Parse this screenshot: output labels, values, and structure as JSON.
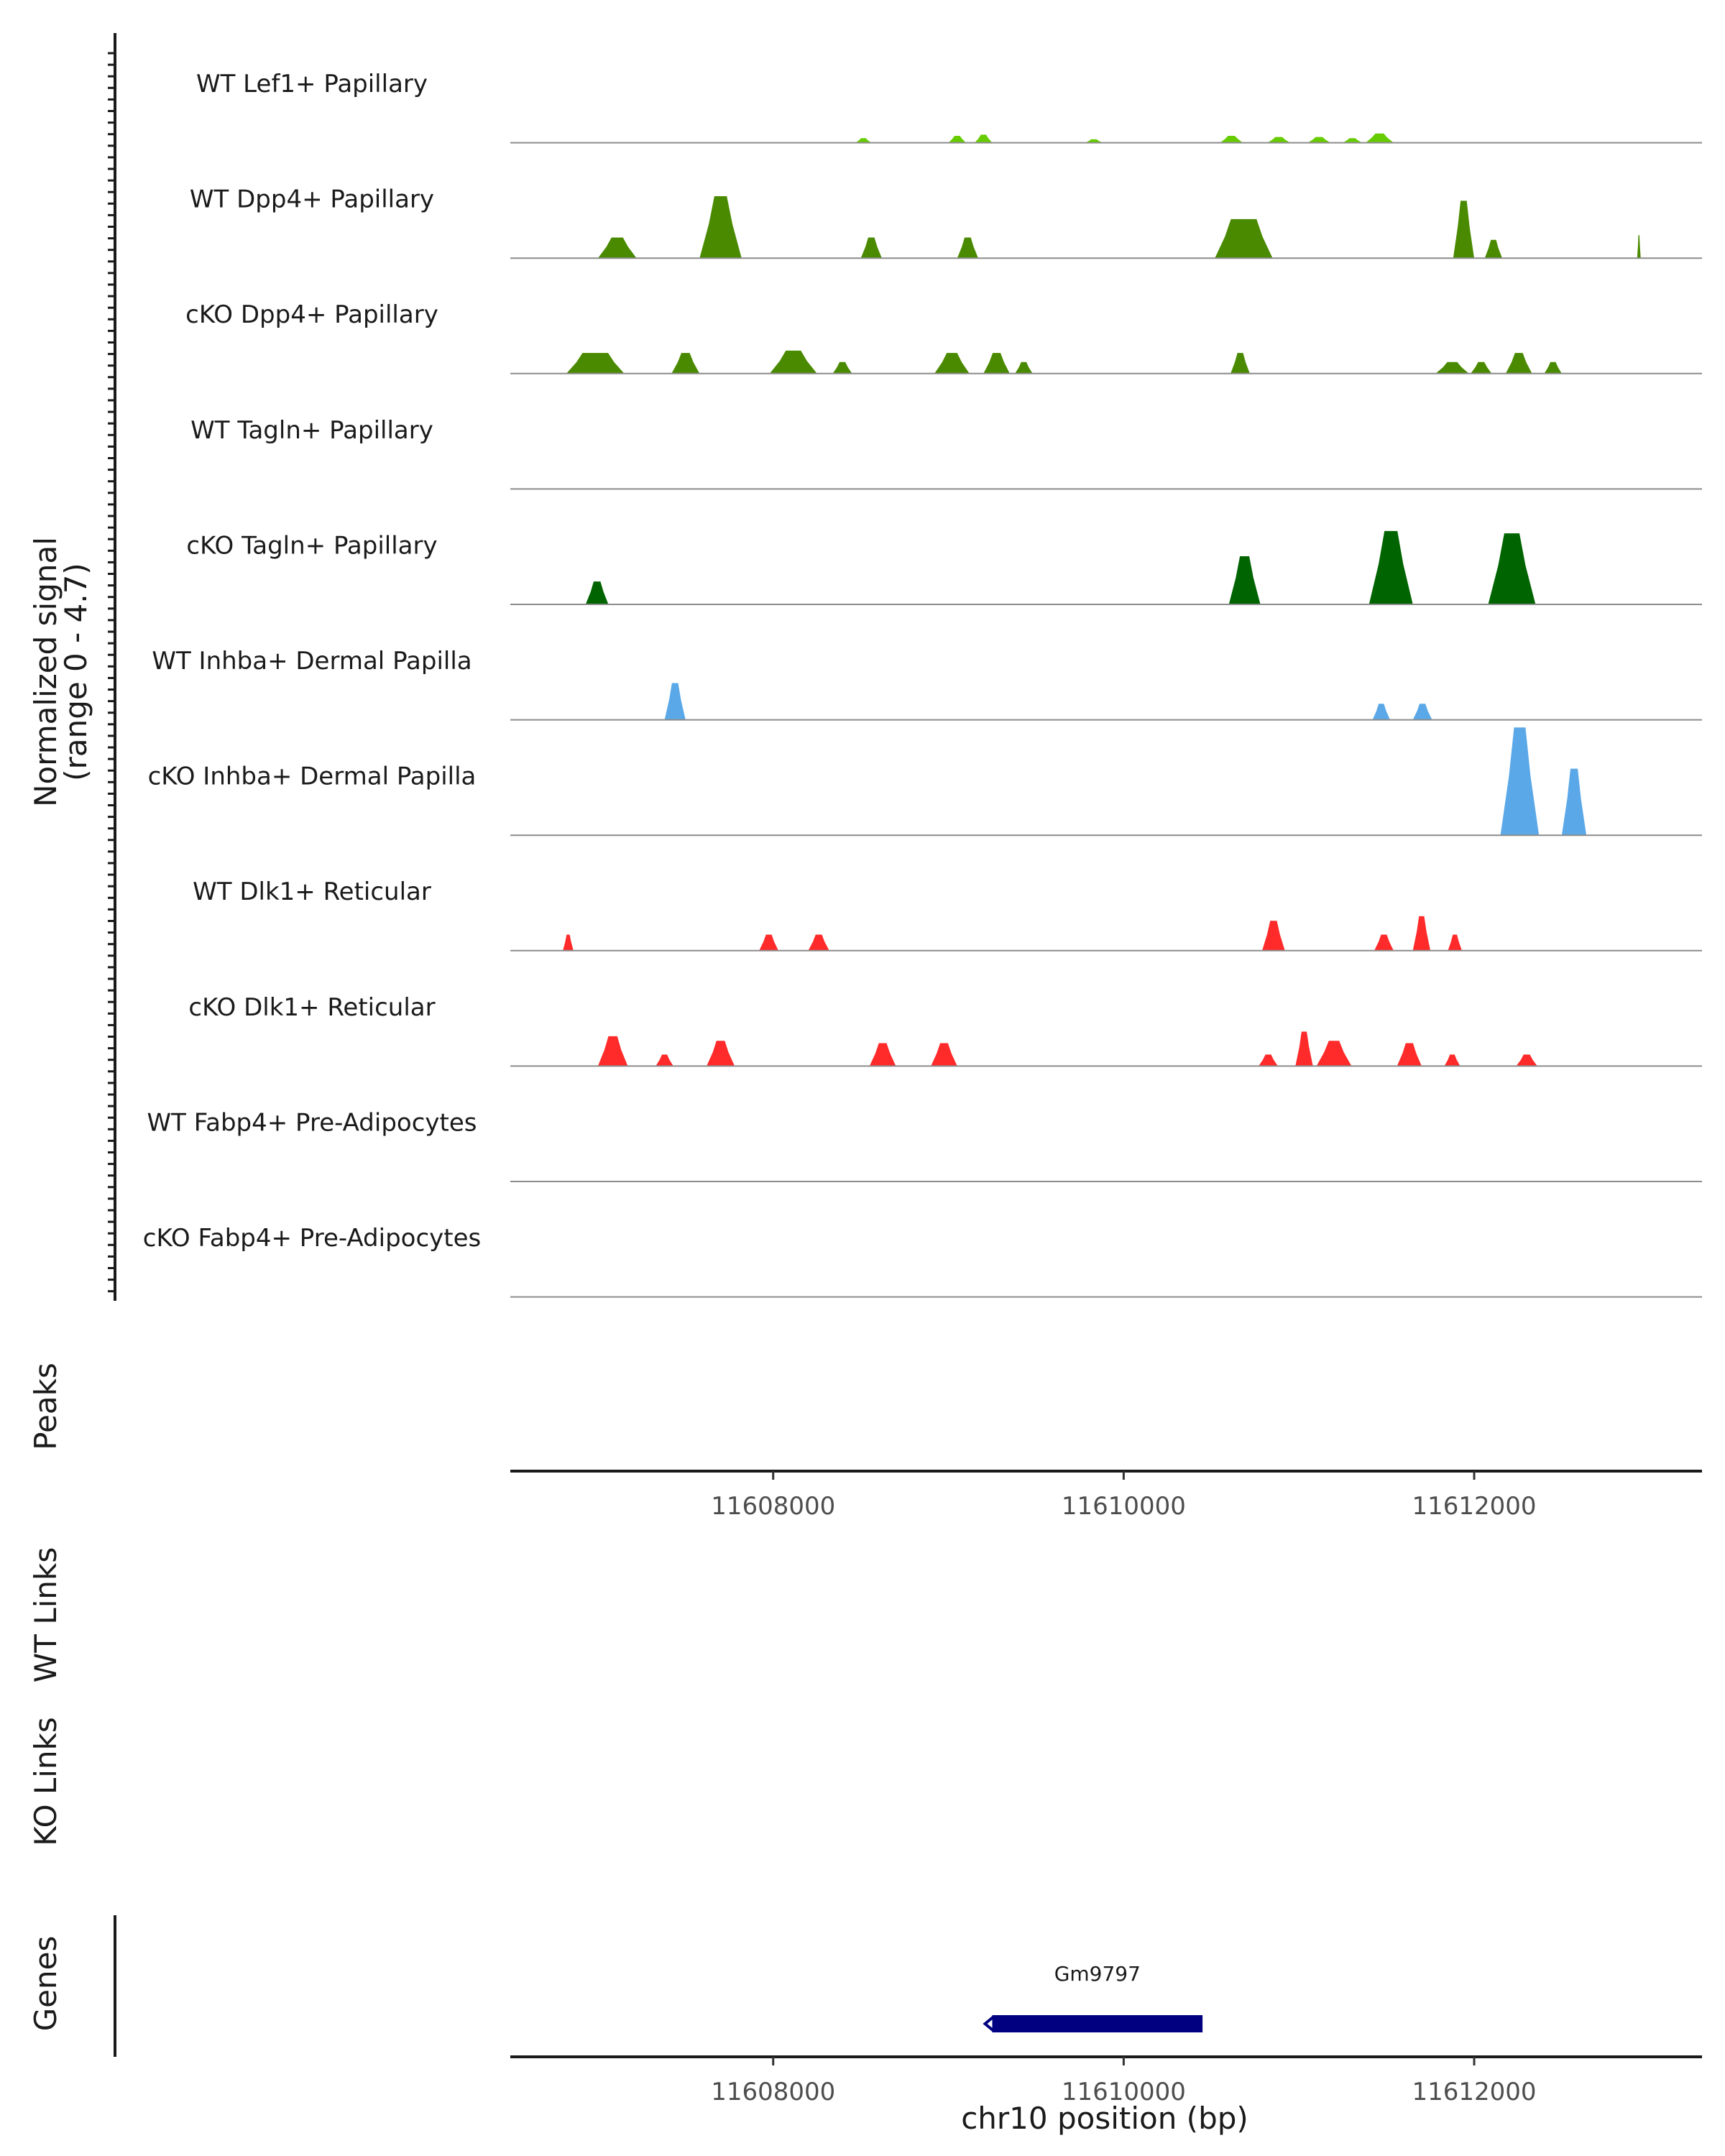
{
  "chart_data": {
    "type": "area",
    "title": "",
    "region": "chr10:11606500-11613300",
    "xlabel": "chr10 position (bp)",
    "xlim": [
      11606500,
      11613300
    ],
    "x_ticks": [
      11608000,
      11610000,
      11612000
    ],
    "x_tick_labels": [
      "11608000",
      "11610000",
      "11612000"
    ],
    "ylabel_line1": "Normalized signal",
    "ylabel_line2": "(range 0 - 4.7)",
    "ylim": [
      0,
      4.7
    ],
    "peaks_label": "Peaks",
    "wt_links_label": "WT Links",
    "ko_links_label": "KO Links",
    "genes_label": "Genes",
    "tracks": [
      {
        "name": "WT Lef1+ Papillary",
        "color": "#66cc00",
        "peaks": [
          [
            11608470,
            11608560,
            0.2
          ],
          [
            11609000,
            11609100,
            0.3
          ],
          [
            11609150,
            11609250,
            0.35
          ],
          [
            11609780,
            11609880,
            0.15
          ],
          [
            11610550,
            11610680,
            0.3
          ],
          [
            11610820,
            11610950,
            0.25
          ],
          [
            11611050,
            11611180,
            0.25
          ],
          [
            11611250,
            11611360,
            0.2
          ],
          [
            11611380,
            11611540,
            0.4
          ]
        ]
      },
      {
        "name": "WT Dpp4+ Papillary",
        "color": "#4a8a00",
        "peaks": [
          [
            11607000,
            11607220,
            0.9
          ],
          [
            11607580,
            11607820,
            2.7
          ],
          [
            11608500,
            11608620,
            0.9
          ],
          [
            11609050,
            11609170,
            0.9
          ],
          [
            11610520,
            11610850,
            1.7
          ],
          [
            11611880,
            11612000,
            2.5
          ],
          [
            11612060,
            11612160,
            0.8
          ],
          [
            11612930,
            11612950,
            1.0
          ]
        ]
      },
      {
        "name": "cKO Dpp4+ Papillary",
        "color": "#4a8a00",
        "peaks": [
          [
            11606820,
            11607150,
            0.9
          ],
          [
            11607420,
            11607580,
            0.9
          ],
          [
            11607980,
            11608250,
            1.0
          ],
          [
            11608340,
            11608450,
            0.5
          ],
          [
            11608920,
            11609120,
            0.9
          ],
          [
            11609200,
            11609350,
            0.9
          ],
          [
            11609380,
            11609480,
            0.5
          ],
          [
            11610610,
            11610720,
            0.9
          ],
          [
            11611780,
            11611970,
            0.5
          ],
          [
            11611980,
            11612100,
            0.5
          ],
          [
            11612180,
            11612330,
            0.9
          ],
          [
            11612400,
            11612500,
            0.5
          ]
        ]
      },
      {
        "name": "WT Tagln+ Papillary",
        "color": "#006400",
        "peaks": []
      },
      {
        "name": "cKO Tagln+ Papillary",
        "color": "#006400",
        "peaks": [
          [
            11606930,
            11607060,
            1.0
          ],
          [
            11610600,
            11610780,
            2.1
          ],
          [
            11611400,
            11611650,
            3.2
          ],
          [
            11612080,
            11612350,
            3.1
          ]
        ]
      },
      {
        "name": "WT Inhba+ Dermal Papilla",
        "color": "#5aa8e8",
        "peaks": [
          [
            11607380,
            11607500,
            1.6
          ],
          [
            11611420,
            11611520,
            0.7
          ],
          [
            11611650,
            11611760,
            0.7
          ]
        ]
      },
      {
        "name": "cKO Inhba+ Dermal Papilla",
        "color": "#5aa8e8",
        "peaks": [
          [
            11612150,
            11612370,
            4.7
          ],
          [
            11612500,
            11612640,
            2.9
          ]
        ]
      },
      {
        "name": "WT Dlk1+ Reticular",
        "color": "#ff2a2a",
        "peaks": [
          [
            11606800,
            11606860,
            0.7
          ],
          [
            11607920,
            11608030,
            0.7
          ],
          [
            11608200,
            11608320,
            0.7
          ],
          [
            11610790,
            11610920,
            1.3
          ],
          [
            11611430,
            11611540,
            0.7
          ],
          [
            11611650,
            11611750,
            1.5
          ],
          [
            11611850,
            11611930,
            0.7
          ]
        ]
      },
      {
        "name": "cKO Dlk1+ Reticular",
        "color": "#ff2a2a",
        "peaks": [
          [
            11607000,
            11607170,
            1.3
          ],
          [
            11607330,
            11607430,
            0.5
          ],
          [
            11607620,
            11607780,
            1.1
          ],
          [
            11608550,
            11608700,
            1.0
          ],
          [
            11608900,
            11609050,
            1.0
          ],
          [
            11610770,
            11610880,
            0.5
          ],
          [
            11610980,
            11611080,
            1.5
          ],
          [
            11611100,
            11611300,
            1.1
          ],
          [
            11611560,
            11611700,
            1.0
          ],
          [
            11611830,
            11611920,
            0.5
          ],
          [
            11612240,
            11612360,
            0.5
          ]
        ]
      },
      {
        "name": "WT Fabp4+ Pre-Adipocytes",
        "color": "#999999",
        "peaks": []
      },
      {
        "name": "cKO Fabp4+ Pre-Adipocytes",
        "color": "#999999",
        "peaks": []
      }
    ],
    "genes": [
      {
        "name": "Gm9797",
        "start": 11609250,
        "end": 11610450,
        "strand": "-",
        "color": "#000080"
      }
    ]
  }
}
